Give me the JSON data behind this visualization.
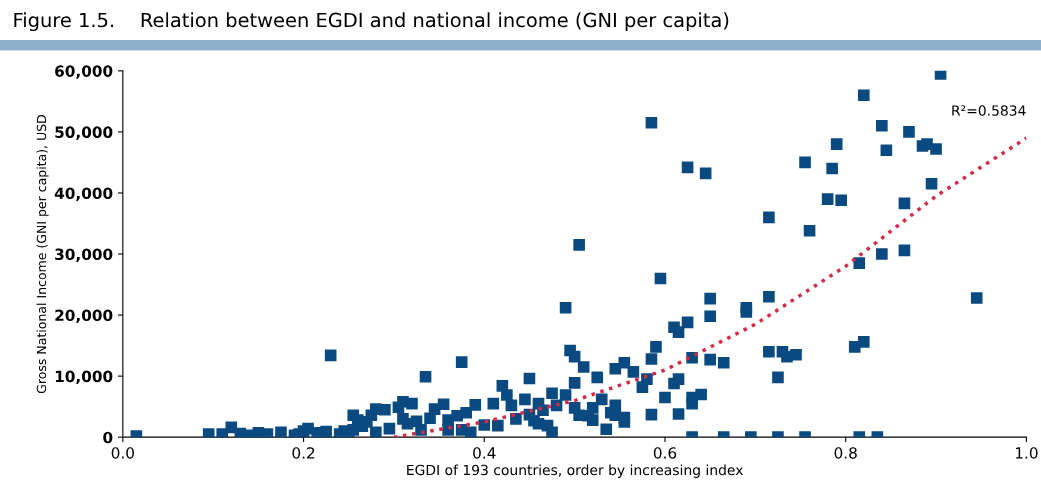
{
  "chart_data": {
    "type": "scatter",
    "title": "Figure 1.5.    Relation between EGDI and national income (GNI per capita)",
    "xlabel": "EGDI of 193 countries, order by increasing index",
    "ylabel": "Gross National Income (GNI per capita), USD",
    "xlim": [
      0,
      1
    ],
    "ylim": [
      0,
      60000
    ],
    "xticks": [
      {
        "value": 0,
        "label": "0.0"
      },
      {
        "value": 0.2,
        "label": "0.2"
      },
      {
        "value": 0.4,
        "label": "0.4"
      },
      {
        "value": 0.6,
        "label": "0.6"
      },
      {
        "value": 0.8,
        "label": "0.8"
      },
      {
        "value": 1,
        "label": "1.0"
      }
    ],
    "yticks": [
      0,
      {
        "value": 10000,
        "label": "10,000"
      },
      {
        "value": 20000,
        "label": "20,000"
      },
      {
        "value": 30000,
        "label": "30,000"
      },
      {
        "value": 40000,
        "label": "40,000"
      },
      {
        "value": 50000,
        "label": "50,000"
      },
      {
        "value": 60000,
        "label": "60,000"
      }
    ],
    "grid": false,
    "legend": false,
    "marker": "square",
    "annotations": [
      "R²=0.5834"
    ],
    "series": [
      {
        "color": "#0a4a80",
        "x": [
          0.905,
          0.82,
          0.585,
          0.84,
          0.87,
          0.79,
          0.89,
          0.885,
          0.845,
          0.9,
          0.625,
          0.645,
          0.755,
          0.785,
          0.895,
          0.78,
          0.795,
          0.865,
          0.715,
          0.76,
          0.505,
          0.84,
          0.865,
          0.815,
          0.595,
          0.945,
          0.715,
          0.65,
          0.69,
          0.69,
          0.65,
          0.625,
          0.61,
          0.615,
          0.49,
          0.495,
          0.5,
          0.59,
          0.585,
          0.63,
          0.65,
          0.665,
          0.715,
          0.73,
          0.735,
          0.745,
          0.725,
          0.81,
          0.82,
          0.23,
          0.375,
          0.335,
          0.45,
          0.5,
          0.51,
          0.525,
          0.555,
          0.565,
          0.545,
          0.58,
          0.6,
          0.61,
          0.615,
          0.575,
          0.64,
          0.63,
          0.63,
          0.615,
          0.585,
          0.42,
          0.425,
          0.445,
          0.41,
          0.43,
          0.46,
          0.465,
          0.48,
          0.49,
          0.475,
          0.52,
          0.515,
          0.53,
          0.54,
          0.545,
          0.555,
          0.555,
          0.505,
          0.5,
          0.45,
          0.455,
          0.46,
          0.47,
          0.435,
          0.415,
          0.39,
          0.38,
          0.37,
          0.36,
          0.355,
          0.345,
          0.34,
          0.36,
          0.375,
          0.385,
          0.31,
          0.32,
          0.305,
          0.29,
          0.28,
          0.275,
          0.27,
          0.255,
          0.26,
          0.265,
          0.255,
          0.245,
          0.28,
          0.295,
          0.31,
          0.315,
          0.325,
          0.33,
          0.24,
          0.225,
          0.215,
          0.2,
          0.195,
          0.19,
          0.175,
          0.16,
          0.15,
          0.14,
          0.13,
          0.12,
          0.11,
          0.095,
          0.015,
          0.205,
          0.25,
          0.4,
          0.475,
          0.52,
          0.545,
          0.63,
          0.665,
          0.695,
          0.725,
          0.755,
          0.815,
          0.835,
          0.535
        ],
        "values": [
          59500,
          56000,
          51500,
          51000,
          50000,
          48000,
          48000,
          47700,
          47000,
          47200,
          44200,
          43200,
          45000,
          44000,
          41500,
          39000,
          38800,
          38300,
          36000,
          33800,
          31500,
          30000,
          30600,
          28500,
          26000,
          22800,
          23000,
          22700,
          21200,
          20500,
          19800,
          18800,
          18000,
          17200,
          21200,
          14200,
          13200,
          14800,
          12800,
          13000,
          12700,
          12200,
          14000,
          14000,
          13200,
          13500,
          9800,
          14800,
          15600,
          13400,
          12300,
          9900,
          9600,
          8900,
          11500,
          9800,
          12200,
          10700,
          11200,
          9500,
          6500,
          8800,
          9500,
          8200,
          7000,
          6500,
          5500,
          3800,
          3700,
          8400,
          6900,
          6200,
          5500,
          5200,
          5500,
          4400,
          5200,
          6900,
          7200,
          4800,
          3500,
          6200,
          4000,
          5200,
          3200,
          2500,
          3600,
          4800,
          3700,
          2700,
          2200,
          1900,
          3000,
          1900,
          5300,
          4000,
          3500,
          2800,
          5400,
          4600,
          3100,
          1200,
          1200,
          800,
          5800,
          5500,
          4900,
          4500,
          4600,
          3600,
          2500,
          3600,
          2800,
          1800,
          1200,
          1000,
          800,
          1400,
          3000,
          2200,
          2600,
          1200,
          500,
          900,
          700,
          1000,
          500,
          300,
          800,
          500,
          700,
          300,
          600,
          1600,
          500,
          500,
          200,
          1400,
          200,
          2000,
          800,
          2800,
          3600,
          0,
          0,
          0,
          0,
          0,
          0,
          0,
          1300
        ]
      },
      {
        "type": "line",
        "color": "#d42a45",
        "line_style": "dotted",
        "marker": "none",
        "x": [
          0.3,
          0.4,
          0.5,
          0.6,
          0.7,
          0.8,
          0.9,
          1.0
        ],
        "values": [
          0,
          2500,
          6000,
          11000,
          18500,
          28000,
          39500,
          49000
        ]
      }
    ]
  }
}
